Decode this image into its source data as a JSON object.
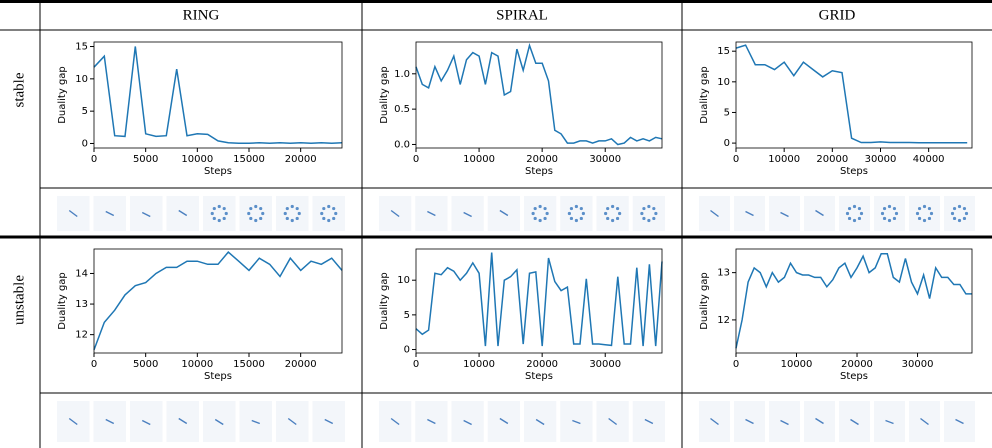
{
  "table": {
    "columns": [
      "RING",
      "SPIRAL",
      "GRID"
    ],
    "rows": [
      "stable",
      "unstable"
    ]
  },
  "chart_data": [
    {
      "type": "line",
      "cell": "ring-stable",
      "ylabel": "Duality gap",
      "xlabel": "Steps",
      "color": "#1f77b4",
      "x": [
        0,
        1000,
        2000,
        3000,
        4000,
        5000,
        6000,
        7000,
        8000,
        9000,
        10000,
        11000,
        12000,
        13000,
        14000,
        15000,
        16000,
        17000,
        18000,
        19000,
        20000,
        21000,
        22000,
        23000,
        24000
      ],
      "values": [
        11.8,
        13.5,
        1.2,
        1.1,
        15,
        1.5,
        1.1,
        1.2,
        11.5,
        1.2,
        1.5,
        1.4,
        0.4,
        0.1,
        0.05,
        0.05,
        0.1,
        0.05,
        0.1,
        0.05,
        0.1,
        0.05,
        0.1,
        0.05,
        0.1
      ],
      "xlim": [
        0,
        24000
      ],
      "ylim": [
        -0.7,
        15.7
      ],
      "xticks": [
        0,
        5000,
        10000,
        15000,
        20000
      ],
      "yticks": [
        0,
        5,
        10,
        15
      ]
    },
    {
      "type": "line",
      "cell": "spiral-stable",
      "ylabel": "Duality gap",
      "xlabel": "Steps",
      "color": "#1f77b4",
      "x": [
        0,
        1000,
        2000,
        3000,
        4000,
        5000,
        6000,
        7000,
        8000,
        9000,
        10000,
        11000,
        12000,
        13000,
        14000,
        15000,
        16000,
        17000,
        18000,
        19000,
        20000,
        21000,
        22000,
        23000,
        24000,
        25000,
        26000,
        27000,
        28000,
        29000,
        30000,
        31000,
        32000,
        33000,
        34000,
        35000,
        36000,
        37000,
        38000,
        39000
      ],
      "values": [
        1.1,
        0.85,
        0.8,
        1.1,
        0.9,
        1.05,
        1.25,
        0.85,
        1.2,
        1.3,
        1.25,
        0.85,
        1.3,
        1.25,
        0.7,
        0.75,
        1.35,
        1.05,
        1.4,
        1.15,
        1.15,
        0.9,
        0.2,
        0.15,
        0.02,
        0.02,
        0.05,
        0.05,
        0.02,
        0.05,
        0.05,
        0.08,
        0.0,
        0.02,
        0.1,
        0.05,
        0.08,
        0.05,
        0.1,
        0.08
      ],
      "xlim": [
        0,
        39000
      ],
      "ylim": [
        -0.05,
        1.45
      ],
      "xticks": [
        0,
        10000,
        20000,
        30000
      ],
      "yticks": [
        {
          "value": 0,
          "label": "0.0"
        },
        0.5,
        {
          "value": 1,
          "label": "1.0"
        }
      ]
    },
    {
      "type": "line",
      "cell": "grid-stable",
      "ylabel": "Duality gap",
      "xlabel": "Steps",
      "color": "#1f77b4",
      "x": [
        0,
        2000,
        4000,
        6000,
        8000,
        10000,
        12000,
        14000,
        16000,
        18000,
        20000,
        22000,
        24000,
        26000,
        28000,
        30000,
        32000,
        34000,
        36000,
        38000,
        40000,
        42000,
        44000,
        46000,
        48000
      ],
      "values": [
        15.5,
        16,
        12.8,
        12.8,
        12,
        13.2,
        11,
        13.2,
        12,
        10.8,
        11.8,
        11.5,
        0.8,
        0.1,
        0.1,
        0.2,
        0.1,
        0.1,
        0.1,
        0.05,
        0.05,
        0.05,
        0.05,
        0.05,
        0.05
      ],
      "xlim": [
        0,
        49000
      ],
      "ylim": [
        -0.8,
        16.5
      ],
      "xticks": [
        0,
        10000,
        20000,
        30000,
        40000
      ],
      "yticks": [
        0,
        5,
        10,
        15
      ]
    },
    {
      "type": "line",
      "cell": "ring-unstable",
      "ylabel": "Duality gap",
      "xlabel": "Steps",
      "color": "#1f77b4",
      "x": [
        0,
        1000,
        2000,
        3000,
        4000,
        5000,
        6000,
        7000,
        8000,
        9000,
        10000,
        11000,
        12000,
        13000,
        14000,
        15000,
        16000,
        17000,
        18000,
        19000,
        20000,
        21000,
        22000,
        23000,
        24000
      ],
      "values": [
        11.5,
        12.4,
        12.8,
        13.3,
        13.6,
        13.7,
        14.0,
        14.2,
        14.2,
        14.4,
        14.4,
        14.3,
        14.3,
        14.7,
        14.4,
        14.1,
        14.5,
        14.3,
        13.9,
        14.5,
        14.1,
        14.4,
        14.3,
        14.5,
        14.1
      ],
      "xlim": [
        0,
        24000
      ],
      "ylim": [
        11.4,
        14.8
      ],
      "xticks": [
        0,
        5000,
        10000,
        15000,
        20000
      ],
      "yticks": [
        12,
        13,
        14
      ]
    },
    {
      "type": "line",
      "cell": "spiral-unstable",
      "ylabel": "Duality gap",
      "xlabel": "Steps",
      "color": "#1f77b4",
      "x": [
        0,
        1000,
        2000,
        3000,
        4000,
        5000,
        6000,
        7000,
        8000,
        9000,
        10000,
        11000,
        12000,
        13000,
        14000,
        15000,
        16000,
        17000,
        18000,
        19000,
        20000,
        21000,
        22000,
        23000,
        24000,
        25000,
        26000,
        27000,
        28000,
        29000,
        30000,
        31000,
        32000,
        33000,
        34000,
        35000,
        36000,
        37000,
        38000,
        39000
      ],
      "values": [
        3,
        2.2,
        2.8,
        11,
        10.8,
        11.8,
        11.3,
        10,
        11,
        12.5,
        11,
        0.5,
        14,
        0.5,
        10,
        10.5,
        11.5,
        0.8,
        11,
        11.2,
        0.5,
        13.2,
        9.8,
        8.5,
        9,
        0.8,
        0.8,
        10.2,
        0.8,
        0.8,
        0.7,
        0.6,
        10.5,
        0.8,
        0.8,
        11.8,
        0.5,
        12.3,
        0.5,
        12.7
      ],
      "xlim": [
        0,
        39000
      ],
      "ylim": [
        -0.5,
        14.5
      ],
      "xticks": [
        0,
        10000,
        20000,
        30000
      ],
      "yticks": [
        0,
        5,
        10
      ]
    },
    {
      "type": "line",
      "cell": "grid-unstable",
      "ylabel": "Duality gap",
      "xlabel": "Steps",
      "color": "#1f77b4",
      "x": [
        0,
        1000,
        2000,
        3000,
        4000,
        5000,
        6000,
        7000,
        8000,
        9000,
        10000,
        11000,
        12000,
        13000,
        14000,
        15000,
        16000,
        17000,
        18000,
        19000,
        20000,
        21000,
        22000,
        23000,
        24000,
        25000,
        26000,
        27000,
        28000,
        29000,
        30000,
        31000,
        32000,
        33000,
        34000,
        35000,
        36000,
        37000,
        38000,
        39000
      ],
      "values": [
        11.4,
        12.0,
        12.8,
        13.1,
        13.0,
        12.7,
        13.0,
        12.8,
        12.9,
        13.2,
        13.0,
        12.95,
        12.95,
        12.9,
        12.9,
        12.7,
        12.85,
        13.1,
        13.2,
        12.9,
        13.1,
        13.35,
        13.0,
        13.1,
        13.4,
        13.4,
        12.9,
        12.8,
        13.3,
        12.8,
        12.55,
        12.95,
        12.45,
        13.1,
        12.9,
        12.9,
        12.75,
        12.75,
        12.55,
        12.55
      ],
      "xlim": [
        0,
        39000
      ],
      "ylim": [
        11.3,
        13.5
      ],
      "xticks": [
        0,
        10000,
        20000,
        30000
      ],
      "yticks": [
        12,
        13
      ]
    }
  ]
}
